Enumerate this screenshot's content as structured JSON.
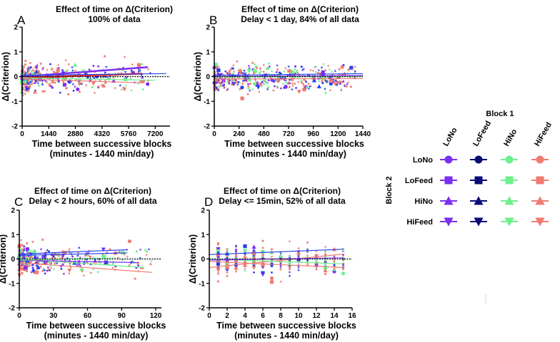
{
  "chart_data": [
    {
      "id": "A",
      "type": "scatter",
      "panel_letter": "A",
      "title": "Effect of time on Δ(Criterion)",
      "subtitle": "100% of data",
      "xlabel": "Time between successive blocks",
      "xlabel2": "(minutes - 1440 min/day)",
      "ylabel": "Δ(Criterion)",
      "xlim": [
        0,
        8000
      ],
      "ylim": [
        -2,
        2
      ],
      "xticks": [
        0,
        1440,
        2880,
        4320,
        5760,
        7200
      ],
      "yticks": [
        -2,
        -1,
        0,
        1,
        2
      ],
      "trend_lines": [
        {
          "color": "purple",
          "y0": 0.0,
          "x1": 6800,
          "y1": 0.38
        },
        {
          "color": "red",
          "y0": -0.05,
          "x1": 6500,
          "y1": 0.12
        },
        {
          "color": "blue",
          "y0": 0.05,
          "x1": 7800,
          "y1": 0.12
        },
        {
          "color": "green",
          "y0": -0.05,
          "x1": 7200,
          "y1": -0.15
        },
        {
          "color": "salmon",
          "y0": -0.1,
          "x1": 6500,
          "y1": -0.25
        }
      ]
    },
    {
      "id": "B",
      "type": "scatter",
      "panel_letter": "B",
      "title": "Effect of time on Δ(Criterion)",
      "subtitle": "Delay < 1 day, 84% of all data",
      "xlabel": "Time between successive blocks",
      "xlabel2": "(minutes - 1440 min/day)",
      "ylabel": "Δ(Criterion)",
      "xlim": [
        0,
        1440
      ],
      "ylim": [
        -2,
        2
      ],
      "xticks": [
        0,
        240,
        480,
        720,
        960,
        1200,
        1440
      ],
      "yticks": [
        -2,
        -1,
        0,
        1,
        2
      ],
      "trend_lines": [
        {
          "color": "blue",
          "y0": 0.05,
          "x1": 1440,
          "y1": 0.12
        },
        {
          "color": "purple",
          "y0": 0.0,
          "x1": 1440,
          "y1": 0.05
        },
        {
          "color": "salmon",
          "y0": -0.1,
          "x1": 1440,
          "y1": -0.08
        },
        {
          "color": "green",
          "y0": -0.02,
          "x1": 1440,
          "y1": 0.0
        }
      ]
    },
    {
      "id": "C",
      "type": "scatter",
      "panel_letter": "C",
      "title": "Effect of time on Δ(Criterion)",
      "subtitle": "Delay < 2 hours, 60% of all data",
      "xlabel": "Time between successive blocks",
      "xlabel2": "(minutes - 1440 min/day)",
      "ylabel": "Δ(Criterion)",
      "xlim": [
        0,
        125
      ],
      "ylim": [
        -2,
        2
      ],
      "xticks": [
        0,
        30,
        60,
        90,
        120
      ],
      "yticks": [
        -2,
        -1,
        0,
        1,
        2
      ],
      "trend_lines": [
        {
          "color": "blue",
          "y0": 0.2,
          "x1": 95,
          "y1": 0.38
        },
        {
          "color": "blue",
          "y0": 0.15,
          "x1": 95,
          "y1": 0.25
        },
        {
          "color": "green",
          "y0": 0.0,
          "x1": 110,
          "y1": -0.35
        },
        {
          "color": "purple",
          "y0": -0.05,
          "x1": 105,
          "y1": -0.15
        },
        {
          "color": "salmon",
          "y0": -0.15,
          "x1": 117,
          "y1": -0.55
        },
        {
          "color": "green",
          "y0": -0.05,
          "x1": 85,
          "y1": 0.05
        }
      ]
    },
    {
      "id": "D",
      "type": "scatter",
      "panel_letter": "D",
      "title": "Effect of time on Δ(Criterion)",
      "subtitle": "Delay <= 15min, 52% of all data",
      "xlabel": "Time between successive blocks",
      "xlabel2": "(minutes - 1440 min/day)",
      "ylabel": "Δ(Criterion)",
      "xlim": [
        0,
        16
      ],
      "ylim": [
        -2,
        2
      ],
      "xticks": [
        0,
        2,
        4,
        6,
        8,
        10,
        12,
        14,
        16
      ],
      "yticks": [
        -2,
        -1,
        0,
        1,
        2
      ],
      "trend_lines": [
        {
          "color": "blue",
          "y0": 0.18,
          "x1": 15,
          "y1": 0.4
        },
        {
          "color": "salmon",
          "y0": -0.35,
          "x1": 15,
          "y1": 0.2
        },
        {
          "color": "salmon",
          "y0": -0.1,
          "x1": 15,
          "y1": -0.35
        },
        {
          "color": "green",
          "y0": 0.0,
          "x1": 15,
          "y1": -0.2
        },
        {
          "color": "purple",
          "y0": -0.05,
          "x1": 15,
          "y1": 0.05
        }
      ]
    }
  ],
  "colors": {
    "purple": "#7b2ff2",
    "blue": "#2440f0",
    "navy": "#0b0b78",
    "green": "#6ef08c",
    "salmon": "#f07b70",
    "red": "#f03020"
  },
  "legend": {
    "block1_title": "Block 1",
    "block2_title": "Block 2",
    "columns": [
      {
        "label": "LoNo",
        "color": "#7b2ff2"
      },
      {
        "label": "LoFeed",
        "color": "#0b0b78"
      },
      {
        "label": "HiNo",
        "color": "#6ef08c"
      },
      {
        "label": "HiFeed",
        "color": "#f07b70"
      }
    ],
    "rows": [
      {
        "label": "LoNo",
        "marker": "circle"
      },
      {
        "label": "LoFeed",
        "marker": "square"
      },
      {
        "label": "HiNo",
        "marker": "triangle-up"
      },
      {
        "label": "HiFeed",
        "marker": "triangle-down"
      }
    ]
  }
}
